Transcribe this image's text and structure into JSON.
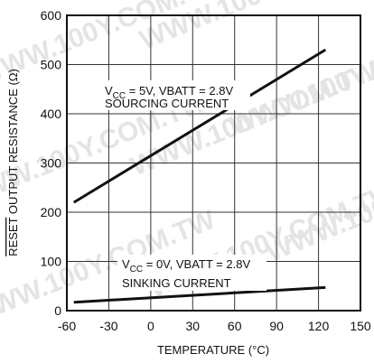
{
  "chart_data": {
    "type": "line",
    "xlabel": "TEMPERATURE (°C)",
    "ylabel": "RESET OUTPUT RESISTANCE (Ω)",
    "ylabel_overline": "RESET",
    "ylabel_rest": " OUTPUT RESISTANCE (Ω)",
    "xlim": [
      -60,
      150
    ],
    "ylim": [
      0,
      600
    ],
    "xticks": [
      -60,
      -30,
      0,
      30,
      60,
      90,
      120,
      150
    ],
    "yticks": [
      0,
      100,
      200,
      300,
      400,
      500,
      600
    ],
    "grid": true,
    "series": [
      {
        "x": [
          -55,
          125
        ],
        "y": [
          220,
          530
        ],
        "color": "#111111"
      },
      {
        "x": [
          -55,
          125
        ],
        "y": [
          17,
          47
        ],
        "color": "#111111"
      }
    ],
    "annotations": [
      {
        "id": "sourcing",
        "line1_parts": [
          "V",
          "CC",
          " = 5V, VBATT = 2.8V"
        ],
        "line2": "SOURCING CURRENT"
      },
      {
        "id": "sinking",
        "line1_parts": [
          "V",
          "CC",
          " = 0V, VBATT = 2.8V"
        ],
        "line2": "SINKING CURRENT"
      }
    ]
  },
  "watermark": {
    "text": "WWW.100Y.COM.TW",
    "color": "#e4e4e4"
  }
}
